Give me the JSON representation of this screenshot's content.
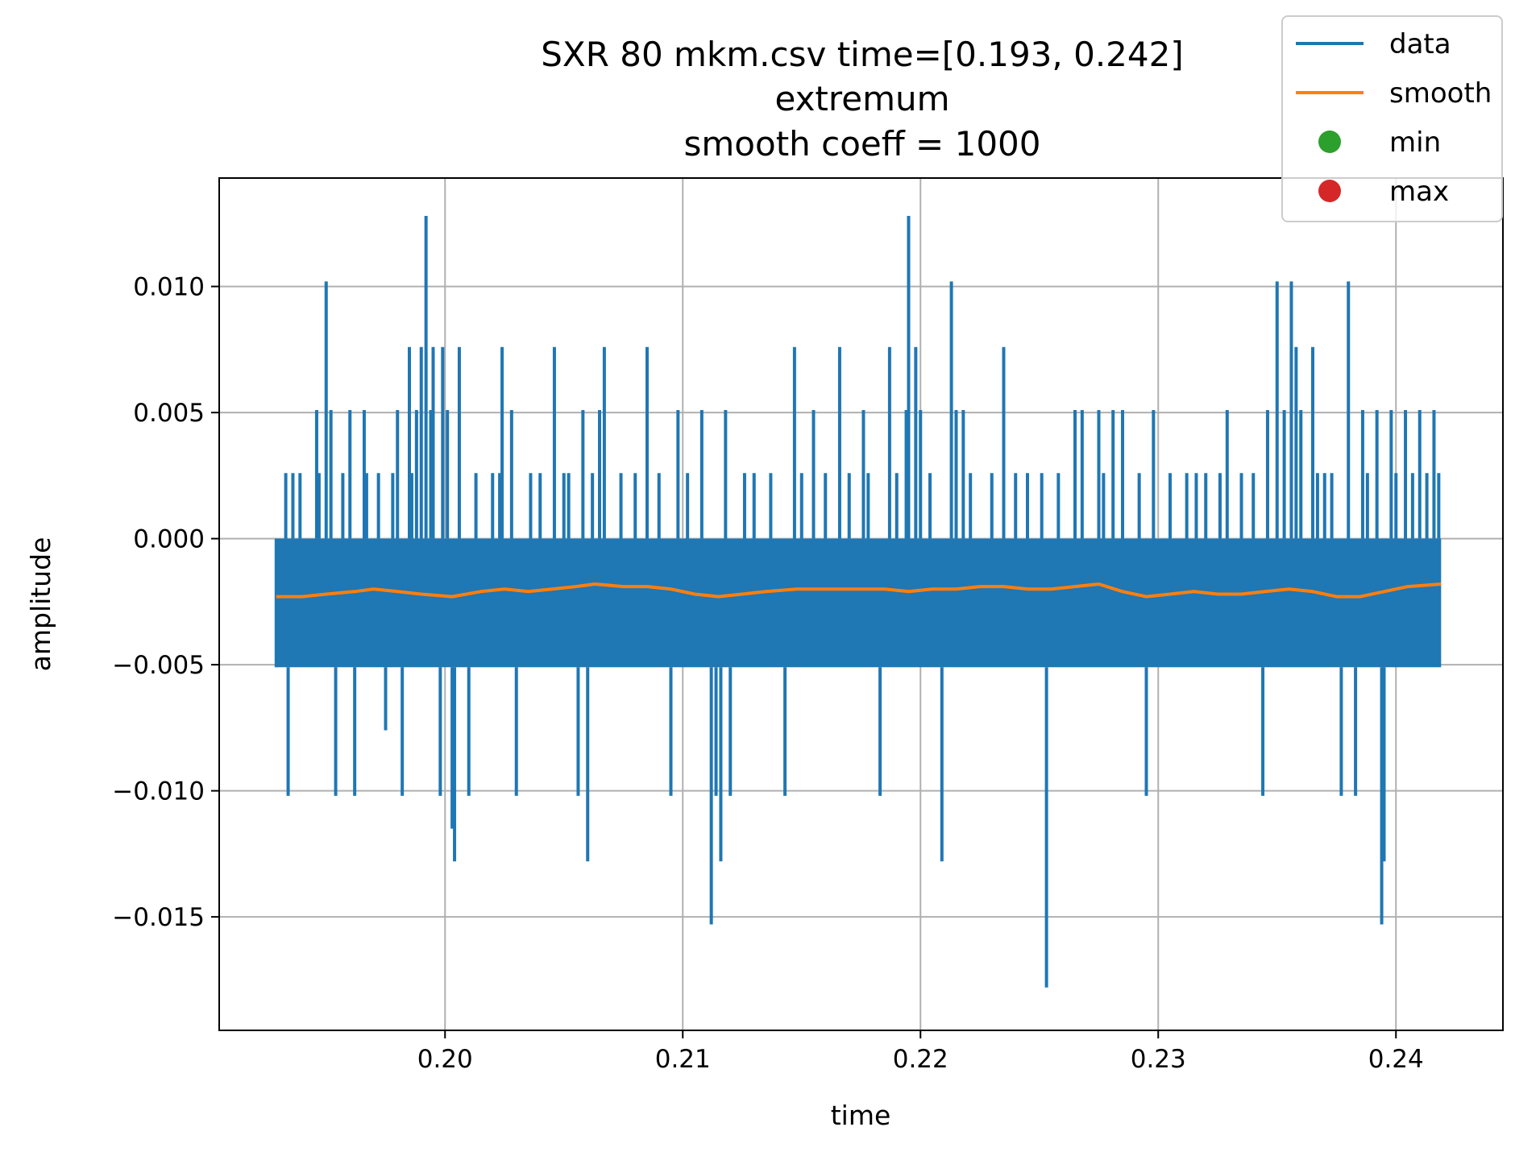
{
  "chart_data": {
    "type": "line",
    "title_lines": [
      "SXR 80 mkm.csv time=[0.193, 0.242]",
      "extremum",
      "smooth coeff = 1000"
    ],
    "xlabel": "time",
    "ylabel": "amplitude",
    "xlim": [
      0.1905,
      0.2445
    ],
    "ylim": [
      -0.0195,
      0.0143
    ],
    "x_ticks": [
      0.2,
      0.21,
      0.22,
      0.23,
      0.24
    ],
    "x_tick_labels": [
      "0.20",
      "0.21",
      "0.22",
      "0.23",
      "0.24"
    ],
    "y_ticks": [
      -0.015,
      -0.01,
      -0.005,
      0.0,
      0.005,
      0.01
    ],
    "y_tick_labels": [
      "−0.015",
      "−0.010",
      "−0.005",
      "0.000",
      "0.005",
      "0.010"
    ],
    "grid": true,
    "legend_placement": "top-right",
    "colors": {
      "data": "#1f77b4",
      "smooth": "#ff7f0e",
      "min": "#2ca02c",
      "max": "#d62728"
    },
    "series": [
      {
        "name": "data",
        "style": "line",
        "x_range": [
          0.1929,
          0.2419
        ],
        "base_band": [
          -0.0051,
          0.0
        ],
        "spikes": [
          [
            0.1933,
            0.0026
          ],
          [
            0.1934,
            -0.0102
          ],
          [
            0.1936,
            0.0026
          ],
          [
            0.1939,
            0.0026
          ],
          [
            0.1946,
            0.0051
          ],
          [
            0.1947,
            0.0026
          ],
          [
            0.195,
            0.0102
          ],
          [
            0.1952,
            0.0051
          ],
          [
            0.1954,
            -0.0102
          ],
          [
            0.1957,
            0.0026
          ],
          [
            0.196,
            0.0051
          ],
          [
            0.1962,
            -0.0102
          ],
          [
            0.1966,
            0.0051
          ],
          [
            0.1967,
            0.0026
          ],
          [
            0.1972,
            0.0026
          ],
          [
            0.1975,
            -0.0076
          ],
          [
            0.1978,
            0.0026
          ],
          [
            0.198,
            0.0051
          ],
          [
            0.1982,
            -0.0102
          ],
          [
            0.1985,
            0.0076
          ],
          [
            0.1986,
            0.0026
          ],
          [
            0.1988,
            0.0051
          ],
          [
            0.199,
            0.0076
          ],
          [
            0.1992,
            0.0128
          ],
          [
            0.1994,
            0.0051
          ],
          [
            0.1995,
            0.0076
          ],
          [
            0.1998,
            -0.0102
          ],
          [
            0.1999,
            0.0076
          ],
          [
            0.2001,
            0.0051
          ],
          [
            0.2003,
            -0.0115
          ],
          [
            0.2004,
            -0.0128
          ],
          [
            0.2006,
            0.0076
          ],
          [
            0.201,
            -0.0102
          ],
          [
            0.2013,
            0.0026
          ],
          [
            0.202,
            0.0026
          ],
          [
            0.2023,
            0.0026
          ],
          [
            0.2024,
            0.0076
          ],
          [
            0.2028,
            0.0051
          ],
          [
            0.203,
            -0.0102
          ],
          [
            0.2036,
            0.0026
          ],
          [
            0.204,
            0.0026
          ],
          [
            0.2046,
            0.0076
          ],
          [
            0.205,
            0.0026
          ],
          [
            0.2052,
            0.0026
          ],
          [
            0.2056,
            -0.0102
          ],
          [
            0.2058,
            0.0051
          ],
          [
            0.206,
            -0.0128
          ],
          [
            0.2062,
            0.0026
          ],
          [
            0.2065,
            0.0051
          ],
          [
            0.2067,
            0.0076
          ],
          [
            0.2074,
            0.0026
          ],
          [
            0.208,
            0.0026
          ],
          [
            0.2085,
            0.0076
          ],
          [
            0.209,
            0.0026
          ],
          [
            0.2095,
            -0.0102
          ],
          [
            0.2098,
            0.0051
          ],
          [
            0.2102,
            0.0026
          ],
          [
            0.2108,
            0.0051
          ],
          [
            0.2112,
            -0.0153
          ],
          [
            0.2114,
            -0.0102
          ],
          [
            0.2116,
            -0.0128
          ],
          [
            0.2118,
            0.0051
          ],
          [
            0.212,
            -0.0102
          ],
          [
            0.2126,
            0.0026
          ],
          [
            0.213,
            0.0026
          ],
          [
            0.2137,
            0.0026
          ],
          [
            0.2143,
            -0.0102
          ],
          [
            0.2147,
            0.0076
          ],
          [
            0.215,
            0.0026
          ],
          [
            0.2155,
            0.0051
          ],
          [
            0.216,
            0.0026
          ],
          [
            0.2166,
            0.0076
          ],
          [
            0.217,
            0.0026
          ],
          [
            0.2176,
            0.0051
          ],
          [
            0.2178,
            0.0026
          ],
          [
            0.2183,
            -0.0102
          ],
          [
            0.2187,
            0.0076
          ],
          [
            0.219,
            0.0026
          ],
          [
            0.2194,
            0.0051
          ],
          [
            0.2195,
            0.0128
          ],
          [
            0.2198,
            0.0076
          ],
          [
            0.22,
            0.0051
          ],
          [
            0.2204,
            0.0026
          ],
          [
            0.2209,
            -0.0128
          ],
          [
            0.2213,
            0.0102
          ],
          [
            0.2215,
            0.0051
          ],
          [
            0.2218,
            0.0051
          ],
          [
            0.2221,
            0.0026
          ],
          [
            0.223,
            0.0026
          ],
          [
            0.2235,
            0.0076
          ],
          [
            0.224,
            0.0026
          ],
          [
            0.2245,
            0.0026
          ],
          [
            0.2251,
            0.0026
          ],
          [
            0.2253,
            -0.0178
          ],
          [
            0.2258,
            0.0026
          ],
          [
            0.2265,
            0.0051
          ],
          [
            0.2268,
            0.0051
          ],
          [
            0.2275,
            0.0051
          ],
          [
            0.2277,
            0.0026
          ],
          [
            0.2281,
            0.0051
          ],
          [
            0.2285,
            0.0051
          ],
          [
            0.2292,
            0.0026
          ],
          [
            0.2295,
            -0.0102
          ],
          [
            0.2298,
            0.0051
          ],
          [
            0.2305,
            0.0026
          ],
          [
            0.2312,
            0.0026
          ],
          [
            0.2316,
            0.0026
          ],
          [
            0.232,
            0.0026
          ],
          [
            0.2326,
            0.0026
          ],
          [
            0.2329,
            0.0051
          ],
          [
            0.2335,
            0.0026
          ],
          [
            0.234,
            0.0026
          ],
          [
            0.2344,
            -0.0102
          ],
          [
            0.2346,
            0.0051
          ],
          [
            0.235,
            0.0102
          ],
          [
            0.2353,
            0.0051
          ],
          [
            0.2356,
            0.0102
          ],
          [
            0.2358,
            0.0076
          ],
          [
            0.236,
            0.0051
          ],
          [
            0.2365,
            0.0076
          ],
          [
            0.2367,
            0.0026
          ],
          [
            0.237,
            0.0026
          ],
          [
            0.2373,
            0.0026
          ],
          [
            0.2377,
            -0.0102
          ],
          [
            0.238,
            0.0102
          ],
          [
            0.2383,
            -0.0102
          ],
          [
            0.2386,
            0.0051
          ],
          [
            0.2388,
            0.0026
          ],
          [
            0.2392,
            0.0051
          ],
          [
            0.2394,
            -0.0153
          ],
          [
            0.2395,
            -0.0128
          ],
          [
            0.2398,
            0.0051
          ],
          [
            0.24,
            0.0026
          ],
          [
            0.2404,
            0.0051
          ],
          [
            0.2407,
            0.0026
          ],
          [
            0.241,
            0.0051
          ],
          [
            0.2413,
            0.0026
          ],
          [
            0.2416,
            0.0051
          ],
          [
            0.2418,
            0.0026
          ]
        ]
      },
      {
        "name": "smooth",
        "style": "line",
        "points": [
          [
            0.1929,
            -0.0023
          ],
          [
            0.194,
            -0.0023
          ],
          [
            0.195,
            -0.0022
          ],
          [
            0.1962,
            -0.0021
          ],
          [
            0.197,
            -0.002
          ],
          [
            0.198,
            -0.0021
          ],
          [
            0.199,
            -0.0022
          ],
          [
            0.2003,
            -0.0023
          ],
          [
            0.2015,
            -0.0021
          ],
          [
            0.2025,
            -0.002
          ],
          [
            0.2035,
            -0.0021
          ],
          [
            0.2045,
            -0.002
          ],
          [
            0.2055,
            -0.0019
          ],
          [
            0.2063,
            -0.0018
          ],
          [
            0.2075,
            -0.0019
          ],
          [
            0.2085,
            -0.0019
          ],
          [
            0.2095,
            -0.002
          ],
          [
            0.2105,
            -0.0022
          ],
          [
            0.2115,
            -0.0023
          ],
          [
            0.2125,
            -0.0022
          ],
          [
            0.2135,
            -0.0021
          ],
          [
            0.2148,
            -0.002
          ],
          [
            0.216,
            -0.002
          ],
          [
            0.2172,
            -0.002
          ],
          [
            0.2185,
            -0.002
          ],
          [
            0.2195,
            -0.0021
          ],
          [
            0.2205,
            -0.002
          ],
          [
            0.2215,
            -0.002
          ],
          [
            0.2225,
            -0.0019
          ],
          [
            0.2235,
            -0.0019
          ],
          [
            0.2245,
            -0.002
          ],
          [
            0.2255,
            -0.002
          ],
          [
            0.2265,
            -0.0019
          ],
          [
            0.2275,
            -0.0018
          ],
          [
            0.2285,
            -0.0021
          ],
          [
            0.2295,
            -0.0023
          ],
          [
            0.2305,
            -0.0022
          ],
          [
            0.2315,
            -0.0021
          ],
          [
            0.2325,
            -0.0022
          ],
          [
            0.2335,
            -0.0022
          ],
          [
            0.2345,
            -0.0021
          ],
          [
            0.2355,
            -0.002
          ],
          [
            0.2365,
            -0.0021
          ],
          [
            0.2375,
            -0.0023
          ],
          [
            0.2385,
            -0.0023
          ],
          [
            0.2395,
            -0.0021
          ],
          [
            0.2405,
            -0.0019
          ],
          [
            0.2419,
            -0.0018
          ]
        ]
      },
      {
        "name": "min",
        "style": "marker",
        "points": []
      },
      {
        "name": "max",
        "style": "marker",
        "points": []
      }
    ]
  }
}
